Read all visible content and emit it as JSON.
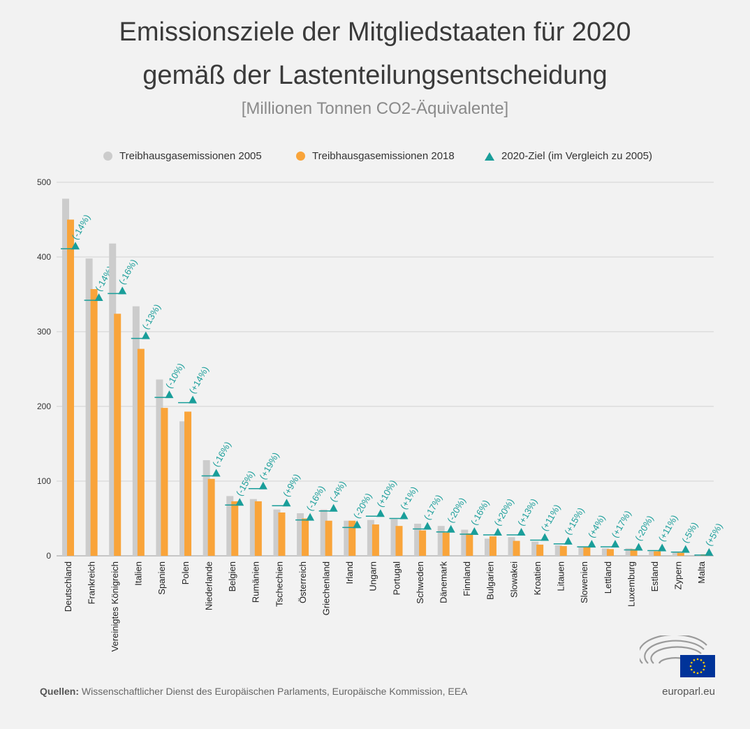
{
  "header": {
    "title_line1": "Emissionsziele der Mitgliedstaaten für 2020",
    "title_line2": "gemäß der Lastenteilungsentscheidung",
    "subtitle": "[Millionen Tonnen CO2-Äquivalente]"
  },
  "legend": {
    "items": [
      {
        "label": "Treibhausgasemissionen 2005",
        "color": "#cccccc",
        "symbol": "circle"
      },
      {
        "label": "Treibhausgasemissionen 2018",
        "color": "#f9a43a",
        "symbol": "circle"
      },
      {
        "label": "2020-Ziel (im Vergleich zu 2005)",
        "color": "#1a9e9a",
        "symbol": "triangle"
      }
    ]
  },
  "chart_data": {
    "type": "bar",
    "title": "Emissionsziele der Mitgliedstaaten für 2020 gemäß der Lastenteilungsentscheidung",
    "ylabel": "Millionen Tonnen CO2-Äquivalente",
    "ylim": [
      0,
      500
    ],
    "yticks": [
      0,
      100,
      200,
      300,
      400,
      500
    ],
    "categories": [
      "Deutschland",
      "Frankreich",
      "Vereinigtes Königreich",
      "Italien",
      "Spanien",
      "Polen",
      "Niederlande",
      "Belgien",
      "Rumänien",
      "Tschechien",
      "Österreich",
      "Griechenland",
      "Irland",
      "Ungarn",
      "Portugal",
      "Schweden",
      "Dänemark",
      "Finnland",
      "Bulgarien",
      "Slowakei",
      "Kroatien",
      "Litauen",
      "Slowenien",
      "Lettland",
      "Luxemburg",
      "Estland",
      "Zypern",
      "Malta"
    ],
    "series": [
      {
        "name": "Treibhausgasemissionen 2005",
        "color": "#cccccc",
        "values": [
          478,
          398,
          418,
          334,
          236,
          180,
          128,
          80,
          76,
          62,
          57,
          62,
          47,
          48,
          49,
          43,
          40,
          35,
          23,
          25,
          19,
          14,
          12,
          10,
          10,
          6,
          5,
          1
        ]
      },
      {
        "name": "Treibhausgasemissionen 2018",
        "color": "#f9a43a",
        "values": [
          450,
          357,
          324,
          277,
          198,
          193,
          103,
          73,
          73,
          58,
          50,
          47,
          47,
          42,
          40,
          34,
          31,
          30,
          26,
          20,
          15,
          13,
          12,
          9,
          9,
          6,
          4,
          2
        ]
      },
      {
        "name": "2020-Ziel (im Vergleich zu 2005)",
        "color": "#1a9e9a",
        "values": [
          411,
          342,
          351,
          291,
          212,
          205,
          107,
          68,
          90,
          67,
          48,
          60,
          38,
          53,
          50,
          36,
          32,
          29,
          28,
          28,
          21,
          16,
          12,
          12,
          8,
          7,
          5,
          1
        ]
      }
    ],
    "target_labels": [
      "(-14%)",
      "(-14%)",
      "(-16%)",
      "(-13%)",
      "(-10%)",
      "(+14%)",
      "(-16%)",
      "(-15%)",
      "(+19%)",
      "(+9%)",
      "(-16%)",
      "(-4%)",
      "(-20%)",
      "(+10%)",
      "(+1%)",
      "(-17%)",
      "(-20%)",
      "(-16%)",
      "(+20%)",
      "(+13%)",
      "(+11%)",
      "(+15%)",
      "(+4%)",
      "(+17%)",
      "(-20%)",
      "(+11%)",
      "(-5%)",
      "(+5%)"
    ],
    "grid": true
  },
  "footer": {
    "source_label": "Quellen:",
    "source_text": "Wissenschaftlicher Dienst des Europäischen Parlaments, Europäische Kommission, EEA",
    "site": "europarl.eu"
  },
  "colors": {
    "grey": "#cccccc",
    "orange": "#f9a43a",
    "teal": "#1a9e9a",
    "eu_blue": "#003399",
    "eu_star": "#ffcc00"
  }
}
